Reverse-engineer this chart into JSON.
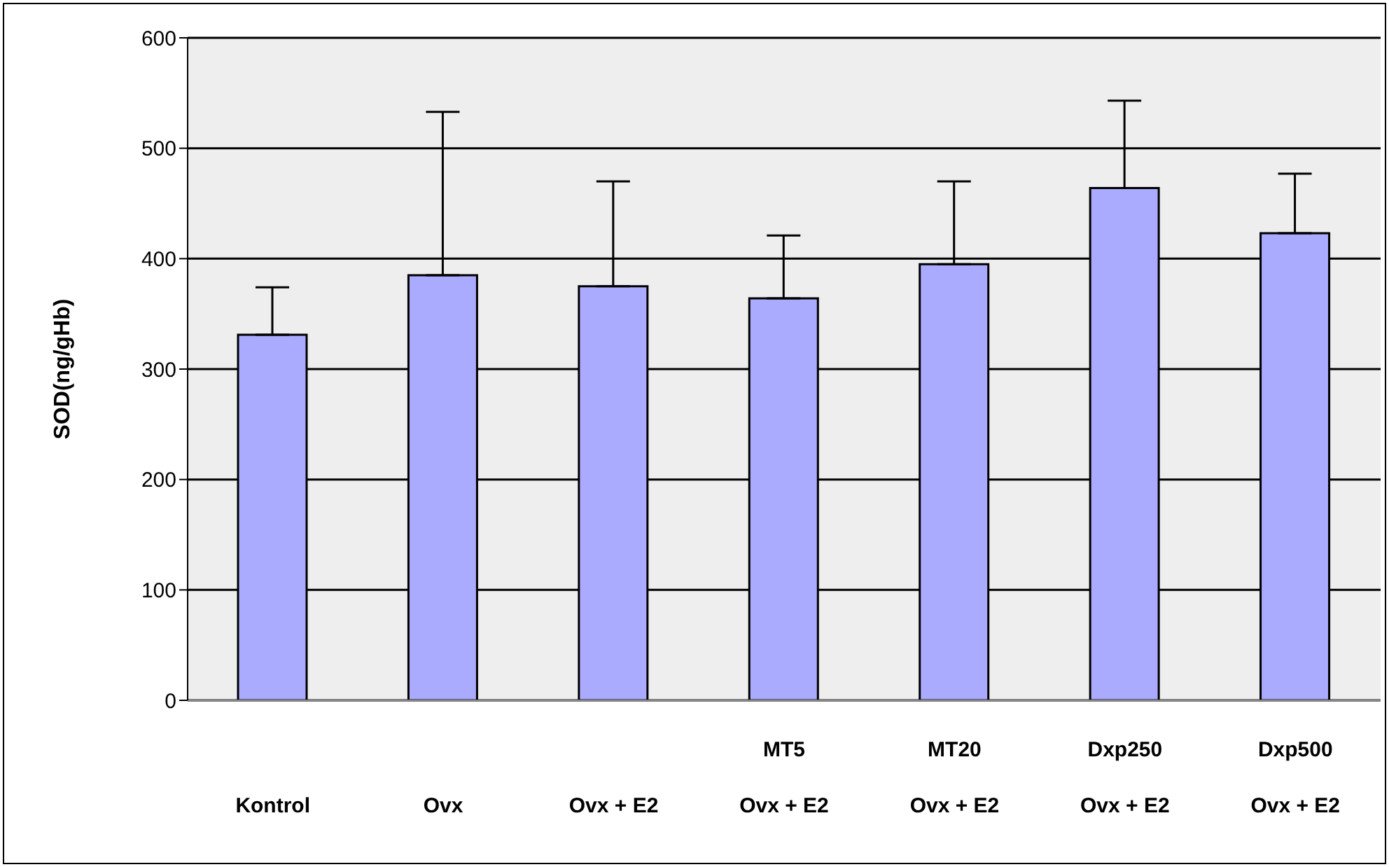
{
  "chart_data": {
    "type": "bar",
    "ylabel": "SOD(ng/gHb)",
    "categories": [
      "Kontrol",
      "Ovx",
      "Ovx + E2",
      "MT5\nOvx + E2",
      "MT20\nOvx + E2",
      "Dxp250\nOvx + E2",
      "Dxp500\nOvx + E2"
    ],
    "values": [
      331,
      385,
      375,
      364,
      395,
      464,
      423
    ],
    "errors": [
      [
        331,
        374
      ],
      [
        385,
        533
      ],
      [
        375,
        470
      ],
      [
        364,
        421
      ],
      [
        395,
        470
      ],
      [
        464,
        543
      ],
      [
        423,
        477
      ]
    ],
    "color": "#aaaaff",
    "ylim": [
      0,
      600
    ],
    "yticks": [
      0,
      100,
      200,
      300,
      400,
      500,
      600
    ],
    "grid": "y"
  }
}
